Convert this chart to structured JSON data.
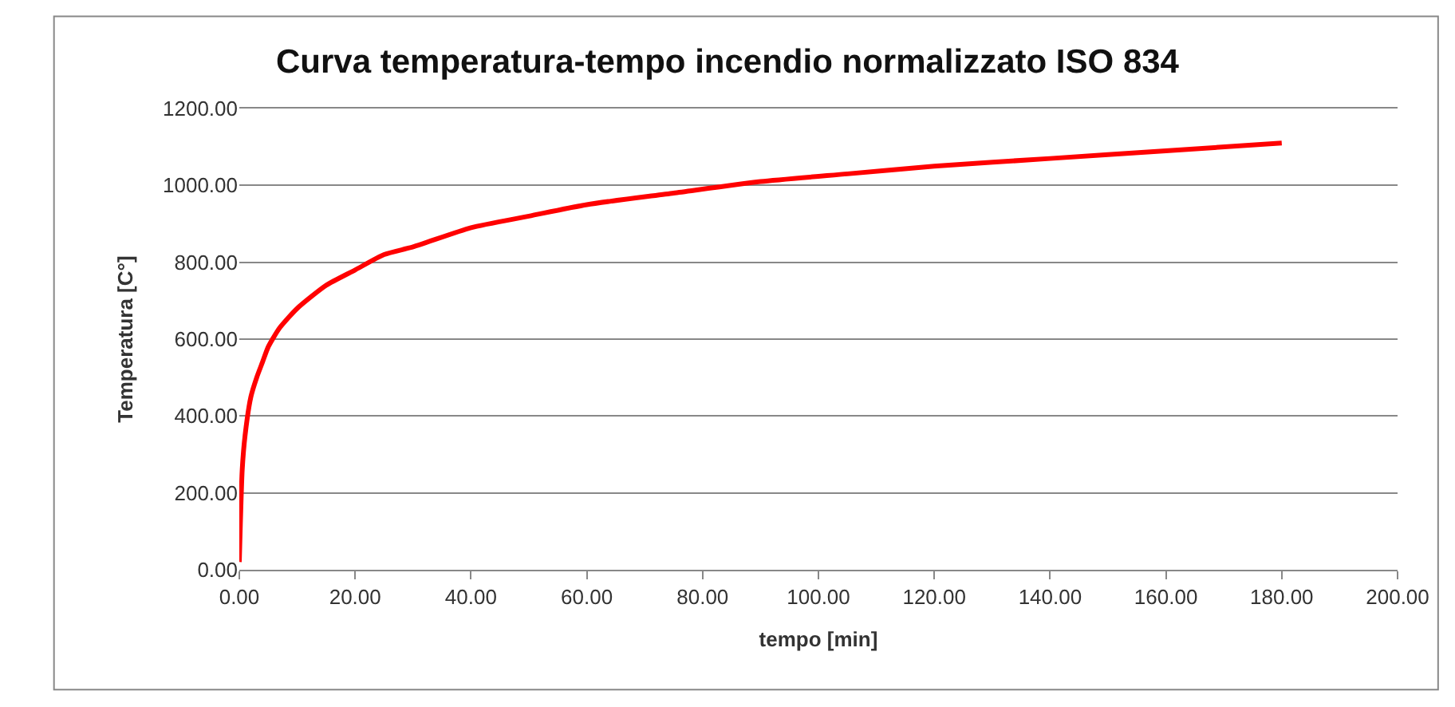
{
  "chart_data": {
    "type": "line",
    "title": "Curva temperatura-tempo incendio normalizzato ISO 834",
    "xlabel": "tempo [min]",
    "ylabel": "Temperatura [C°]",
    "series": [
      {
        "color": "#ff0000",
        "x": [
          0,
          0.5,
          1,
          2,
          3,
          4,
          5,
          7,
          10,
          15,
          20,
          25,
          30,
          40,
          50,
          60,
          75,
          90,
          105,
          120,
          140,
          160,
          180
        ],
        "values": [
          20,
          260,
          350,
          450,
          500,
          540,
          580,
          630,
          680,
          740,
          780,
          820,
          840,
          890,
          920,
          950,
          980,
          1010,
          1030,
          1050,
          1070,
          1090,
          1110
        ]
      }
    ],
    "xlim": [
      0,
      200
    ],
    "ylim": [
      0,
      1200
    ],
    "xticks": [
      {
        "value": 0,
        "label": "0.00"
      },
      {
        "value": 20,
        "label": "20.00"
      },
      {
        "value": 40,
        "label": "40.00"
      },
      {
        "value": 60,
        "label": "60.00"
      },
      {
        "value": 80,
        "label": "80.00"
      },
      {
        "value": 100,
        "label": "100.00"
      },
      {
        "value": 120,
        "label": "120.00"
      },
      {
        "value": 140,
        "label": "140.00"
      },
      {
        "value": 160,
        "label": "160.00"
      },
      {
        "value": 180,
        "label": "180.00"
      },
      {
        "value": 200,
        "label": "200.00"
      }
    ],
    "yticks": [
      {
        "value": 0,
        "label": "0.00"
      },
      {
        "value": 200,
        "label": "200.00"
      },
      {
        "value": 400,
        "label": "400.00"
      },
      {
        "value": 600,
        "label": "600.00"
      },
      {
        "value": 800,
        "label": "800.00"
      },
      {
        "value": 1000,
        "label": "1000.00"
      },
      {
        "value": 1200,
        "label": "1200.00"
      }
    ],
    "grid": "y",
    "marker": "none",
    "line_style": "solid"
  }
}
